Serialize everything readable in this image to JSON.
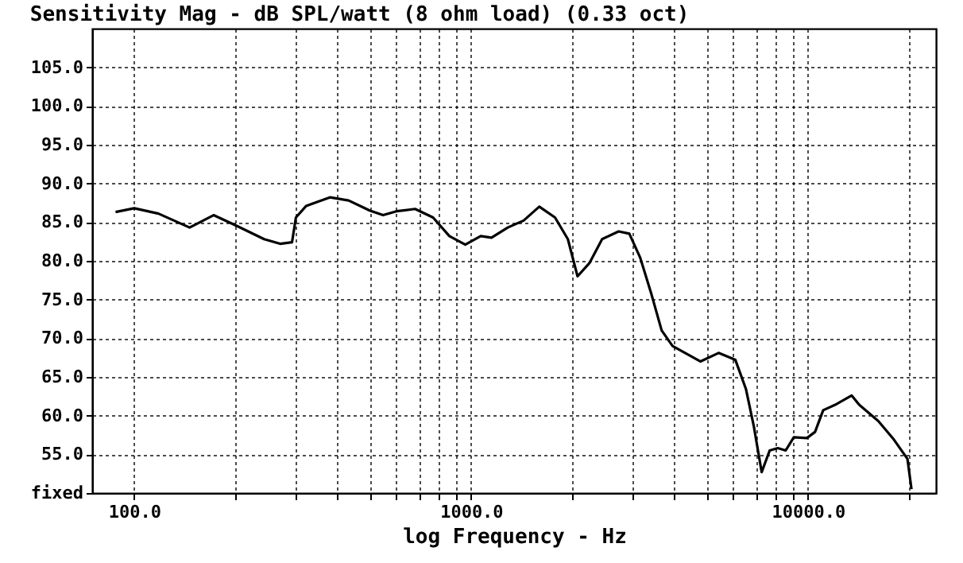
{
  "chart_data": {
    "type": "line",
    "title": "Sensitivity Mag - dB SPL/watt (8 ohm load) (0.33 oct)",
    "xlabel": "log Frequency - Hz",
    "log": "x",
    "grid": true,
    "marker": "none",
    "line_style": "solid",
    "xlim": [
      75,
      24000
    ],
    "xticks": [
      {
        "value": 100,
        "label": "100.0"
      },
      {
        "value": 200,
        "label": null
      },
      {
        "value": 300,
        "label": null
      },
      {
        "value": 400,
        "label": null
      },
      {
        "value": 500,
        "label": null
      },
      {
        "value": 600,
        "label": null
      },
      {
        "value": 700,
        "label": null
      },
      {
        "value": 800,
        "label": null
      },
      {
        "value": 900,
        "label": null
      },
      {
        "value": 1000,
        "label": "1000.0"
      },
      {
        "value": 2000,
        "label": null
      },
      {
        "value": 3000,
        "label": null
      },
      {
        "value": 4000,
        "label": null
      },
      {
        "value": 5000,
        "label": null
      },
      {
        "value": 6000,
        "label": null
      },
      {
        "value": 7000,
        "label": null
      },
      {
        "value": 8000,
        "label": null
      },
      {
        "value": 9000,
        "label": null
      },
      {
        "value": 10000,
        "label": "10000.0"
      },
      {
        "value": 20000,
        "label": null
      }
    ],
    "ylim": [
      50,
      110
    ],
    "yticks": [
      {
        "value": 50,
        "label": "fixed"
      },
      {
        "value": 55,
        "label": "55.0"
      },
      {
        "value": 60,
        "label": "60.0"
      },
      {
        "value": 65,
        "label": "65.0"
      },
      {
        "value": 70,
        "label": "70.0"
      },
      {
        "value": 75,
        "label": "75.0"
      },
      {
        "value": 80,
        "label": "80.0"
      },
      {
        "value": 85,
        "label": "85.0"
      },
      {
        "value": 90,
        "label": "90.0"
      },
      {
        "value": 95,
        "label": "95.0"
      },
      {
        "value": 100,
        "label": "100.0"
      },
      {
        "value": 105,
        "label": "105.0"
      }
    ],
    "series": [
      {
        "color": "#000000",
        "x": [
          88,
          100,
          118,
          146,
          172,
          202,
          243,
          271,
          294,
          302,
          324,
          381,
          433,
          500,
          548,
          600,
          682,
          771,
          862,
          961,
          1068,
          1150,
          1285,
          1432,
          1594,
          1775,
          1938,
          2070,
          2245,
          2449,
          2742,
          2950,
          3178,
          3420,
          3680,
          3964,
          4800,
          5430,
          6090,
          6550,
          6910,
          7290,
          7700,
          8140,
          8590,
          9080,
          9930,
          10500,
          11100,
          12050,
          13480,
          14200,
          16180,
          18000,
          19750,
          20300
        ],
        "values": [
          86.3,
          86.8,
          86.1,
          84.3,
          85.9,
          84.5,
          82.8,
          82.2,
          82.4,
          85.6,
          87.1,
          88.2,
          87.8,
          86.5,
          85.9,
          86.4,
          86.7,
          85.6,
          83.2,
          82.1,
          83.2,
          83.0,
          84.3,
          85.2,
          87.0,
          85.6,
          82.8,
          78.0,
          79.7,
          82.8,
          83.8,
          83.5,
          80.4,
          75.9,
          71.0,
          69.0,
          67.0,
          68.1,
          67.2,
          63.4,
          58.6,
          52.7,
          55.5,
          55.8,
          55.5,
          57.2,
          57.1,
          57.9,
          60.7,
          61.4,
          62.6,
          61.4,
          59.3,
          56.9,
          54.4,
          50.5
        ]
      }
    ]
  }
}
